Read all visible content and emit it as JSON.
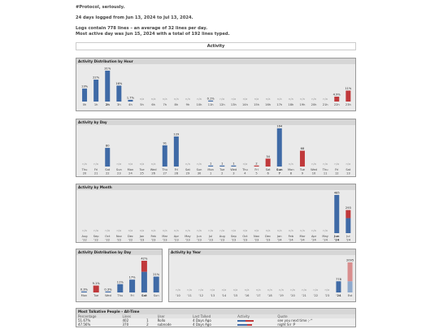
{
  "header": {
    "line1": "#Protocol, seriously.",
    "line2": "24 days logged from Jun 13, 2024 to Jul 13, 2024.",
    "line3": "Logs contain 778 lines – an average of 32 lines per day.",
    "line4": "Most active day was Jun 15, 2024 with a total of 192 lines typed."
  },
  "section_title": "Activity",
  "colors": {
    "blue": "#3f6aa6",
    "red": "#c0393b",
    "light": "#8ea9cc",
    "pink": "#d98e8e",
    "na": "#999"
  },
  "chart_data": [
    {
      "type": "bar",
      "title": "Activity Distribution by Hour",
      "categories": [
        "0h",
        "1h",
        "2h",
        "3h",
        "4h",
        "5h",
        "6h",
        "7h",
        "8h",
        "9h",
        "10h",
        "11h",
        "12h",
        "13h",
        "14h",
        "15h",
        "16h",
        "17h",
        "18h",
        "19h",
        "20h",
        "21h",
        "22h",
        "23h"
      ],
      "bold_category": "2h",
      "labels": [
        "13%",
        "22%",
        "31%",
        "16%",
        "1.7%",
        "n/a",
        "n/a",
        "n/a",
        "n/a",
        "n/a",
        "n/a",
        "0.1%",
        "n/a",
        "n/a",
        "n/a",
        "n/a",
        "n/a",
        "n/a",
        "n/a",
        "n/a",
        "n/a",
        "n/a",
        "4.9%",
        "11%"
      ],
      "values": [
        13,
        22,
        31,
        16,
        1.7,
        0,
        0,
        0,
        0,
        0,
        0,
        0.1,
        0,
        0,
        0,
        0,
        0,
        0,
        0,
        0,
        0,
        0,
        4.9,
        11
      ],
      "colors": [
        "blue",
        "blue",
        "blue",
        "blue",
        "blue",
        "na",
        "na",
        "na",
        "na",
        "na",
        "na",
        "blue",
        "na",
        "na",
        "na",
        "na",
        "na",
        "na",
        "na",
        "na",
        "na",
        "na",
        "red",
        "red"
      ]
    },
    {
      "type": "bar",
      "title": "Activity by Day",
      "categories": [
        "Thu",
        "Fri",
        "Sat",
        "Sun",
        "Mon",
        "Tue",
        "Wed",
        "Thu",
        "Fri",
        "Sat",
        "Sun",
        "Mon",
        "Tue",
        "Wed",
        "Thu",
        "Fri",
        "Sat",
        "Sun",
        "Mon",
        "Tue",
        "Wed",
        "Thu",
        "Fri",
        "Sat"
      ],
      "sub": [
        "20",
        "21",
        "22",
        "23",
        "24",
        "25",
        "26",
        "27",
        "28",
        "29",
        "30",
        "1",
        "2",
        "3",
        "4",
        "5",
        "6",
        "7",
        "8",
        "9",
        "10",
        "11",
        "12",
        "13"
      ],
      "bold_index": 17,
      "labels": [
        "n/a",
        "n/a",
        "80",
        "n/a",
        "n/a",
        "n/a",
        "n/a",
        "91",
        "129",
        "n/a",
        "n/a",
        "1",
        "1",
        "1",
        "n/a",
        "2",
        "34",
        "164",
        "n/a",
        "68",
        "n/a",
        "n/a",
        "n/a",
        "n/a"
      ],
      "values": [
        0,
        0,
        80,
        0,
        0,
        0,
        0,
        91,
        129,
        0,
        0,
        1,
        1,
        1,
        0,
        2,
        34,
        164,
        0,
        68,
        0,
        0,
        0,
        0
      ],
      "colors": [
        "na",
        "na",
        "blue",
        "na",
        "na",
        "na",
        "na",
        "blue",
        "blue",
        "na",
        "na",
        "blue",
        "blue",
        "blue",
        "na",
        "red",
        "red",
        "blue",
        "na",
        "red",
        "na",
        "na",
        "na",
        "na"
      ]
    },
    {
      "type": "bar",
      "title": "Activity by Month",
      "categories": [
        "Aug",
        "Sep",
        "Oct",
        "Nov",
        "Dec",
        "Jan",
        "Feb",
        "Mar",
        "Apr",
        "May",
        "Jun",
        "Jul",
        "Aug",
        "Sep",
        "Oct",
        "Nov",
        "Dec",
        "Jan",
        "Feb",
        "Mar",
        "Apr",
        "May",
        "Jun",
        "Jul"
      ],
      "sub": [
        "'22",
        "'22",
        "'22",
        "'22",
        "'22",
        "'23",
        "'23",
        "'23",
        "'23",
        "'23",
        "'23",
        "'23",
        "'23",
        "'23",
        "'23",
        "'23",
        "'23",
        "'24",
        "'24",
        "'24",
        "'24",
        "'24",
        "'24",
        "'24"
      ],
      "bold_index": 22,
      "labels": [
        "n/a",
        "n/a",
        "n/a",
        "n/a",
        "n/a",
        "n/a",
        "n/a",
        "n/a",
        "n/a",
        "n/a",
        "n/a",
        "n/a",
        "n/a",
        "n/a",
        "n/a",
        "n/a",
        "n/a",
        "n/a",
        "n/a",
        "n/a",
        "n/a",
        "n/a",
        "485",
        "293"
      ],
      "values": [
        0,
        0,
        0,
        0,
        0,
        0,
        0,
        0,
        0,
        0,
        0,
        0,
        0,
        0,
        0,
        0,
        0,
        0,
        0,
        0,
        0,
        0,
        485,
        293
      ],
      "colors": [
        "na",
        "na",
        "na",
        "na",
        "na",
        "na",
        "na",
        "na",
        "na",
        "na",
        "na",
        "na",
        "na",
        "na",
        "na",
        "na",
        "na",
        "na",
        "na",
        "na",
        "na",
        "na",
        "blue",
        "split"
      ]
    },
    {
      "type": "bar",
      "title": "Activity Distribution by Day",
      "categories": [
        "Mon",
        "Tue",
        "Wed",
        "Thu",
        "Fri",
        "Sat",
        "Sun"
      ],
      "bold_category": "Sat",
      "labels": [
        "0.3%",
        "9.1%",
        "0.3%",
        "11%",
        "17%",
        "42%",
        "21%"
      ],
      "values": [
        0.3,
        9.1,
        0.3,
        11,
        17,
        42,
        21
      ],
      "colors": [
        "blue",
        "red",
        "blue",
        "blue",
        "blue",
        "split",
        "blue"
      ]
    },
    {
      "type": "bar",
      "title": "Activity by Year",
      "categories": [
        "'10",
        "'11",
        "'12",
        "'13",
        "'14",
        "'15",
        "'16",
        "'17",
        "'18",
        "'19",
        "'20",
        "'21",
        "'22",
        "'23",
        "'24",
        "Est"
      ],
      "bold_category": "'24",
      "labels": [
        "n/a",
        "n/a",
        "n/a",
        "n/a",
        "n/a",
        "n/a",
        "n/a",
        "n/a",
        "n/a",
        "n/a",
        "n/a",
        "n/a",
        "n/a",
        "n/a",
        "778",
        "2095"
      ],
      "values": [
        0,
        0,
        0,
        0,
        0,
        0,
        0,
        0,
        0,
        0,
        0,
        0,
        0,
        0,
        778,
        2095
      ],
      "colors": [
        "na",
        "na",
        "na",
        "na",
        "na",
        "na",
        "na",
        "na",
        "na",
        "na",
        "na",
        "na",
        "na",
        "na",
        "blue",
        "est"
      ]
    }
  ],
  "talkative": {
    "title": "Most Talkative People – All-Time",
    "headers": [
      "Percentage",
      "Lines",
      "",
      "User",
      "Last Talked",
      "Activity",
      "Quote"
    ],
    "rows": [
      {
        "pct": "51.67%",
        "lines": "402",
        "rank": "1",
        "user": "Rollo",
        "last": "4 Days Ago",
        "quote": "see you next time ;-^"
      },
      {
        "pct": "47.56%",
        "lines": "370",
        "rank": "2",
        "user": "subnode",
        "last": "4 Days Ago",
        "quote": "night Sir :P"
      }
    ]
  }
}
